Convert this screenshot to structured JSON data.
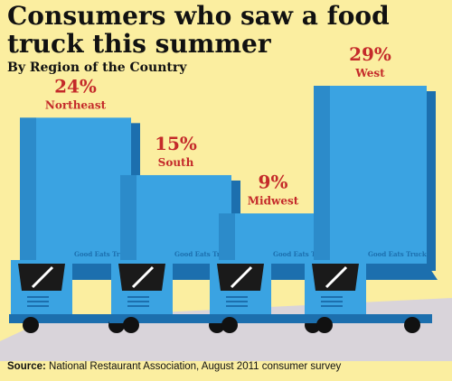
{
  "title": "Consumers who saw a food truck this summer",
  "subtitle": "By Region of the Country",
  "source_label": "Source:",
  "source_text": "National Restaurant Association, August 2011 consumer survey",
  "truck_text": "Good Eats Truck",
  "colors": {
    "background": "#fbeea0",
    "ground": "#d9d4da",
    "truck_body": "#3aa3e2",
    "truck_dark": "#1c6fae",
    "value_label": "#c42a2a",
    "text": "#111111"
  },
  "chart_data": {
    "type": "bar",
    "categories": [
      "Northeast",
      "South",
      "Midwest",
      "West"
    ],
    "values": [
      24,
      15,
      9,
      29
    ],
    "labels": [
      "24%",
      "15%",
      "9%",
      "29%"
    ],
    "unit": "%",
    "title": "Consumers who saw a food truck this summer",
    "subtitle": "By Region of the Country",
    "xlabel": "",
    "ylabel": "",
    "ylim": [
      0,
      29
    ],
    "grid": false,
    "legend": "none"
  }
}
